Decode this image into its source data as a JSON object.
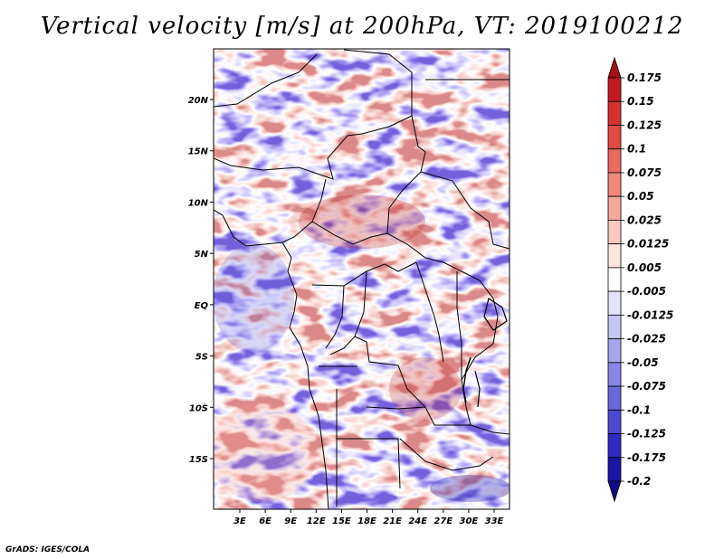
{
  "title": "Vertical velocity [m/s] at 200hPa, VT: 2019100212",
  "credit": "GrADS: IGES/COLA",
  "map": {
    "lon_labels": [
      "3E",
      "6E",
      "9E",
      "12E",
      "15E",
      "18E",
      "21E",
      "24E",
      "27E",
      "30E",
      "33E"
    ],
    "lon_values": [
      3,
      6,
      9,
      12,
      15,
      18,
      21,
      24,
      27,
      30,
      33
    ],
    "lat_labels": [
      "20N",
      "15N",
      "10N",
      "5N",
      "EQ",
      "5S",
      "10S",
      "15S"
    ],
    "lat_values": [
      20,
      15,
      10,
      5,
      0,
      -5,
      -10,
      -15
    ],
    "lon_range": [
      0,
      35
    ],
    "lat_range": [
      -20,
      25
    ],
    "land_boundaries": "continent coastline and national borders drawn in black"
  },
  "colorbar": {
    "labels": [
      "0.175",
      "0.15",
      "0.125",
      "0.1",
      "0.075",
      "0.05",
      "0.025",
      "0.0125",
      "0.005",
      "-0.005",
      "-0.0125",
      "-0.025",
      "-0.05",
      "-0.075",
      "-0.1",
      "-0.125",
      "-0.175",
      "-0.2"
    ],
    "colors": [
      "#a50f15",
      "#c11b21",
      "#d6302f",
      "#e34a44",
      "#ec6a5f",
      "#f4877b",
      "#f9a89d",
      "#fcc9c0",
      "#fee5e0",
      "#ffffff",
      "#e3e3fb",
      "#c6c6f5",
      "#a7a5ee",
      "#8986e5",
      "#6b67dc",
      "#4d48d2",
      "#2f29c6",
      "#1b14a8",
      "#120a8a"
    ]
  }
}
